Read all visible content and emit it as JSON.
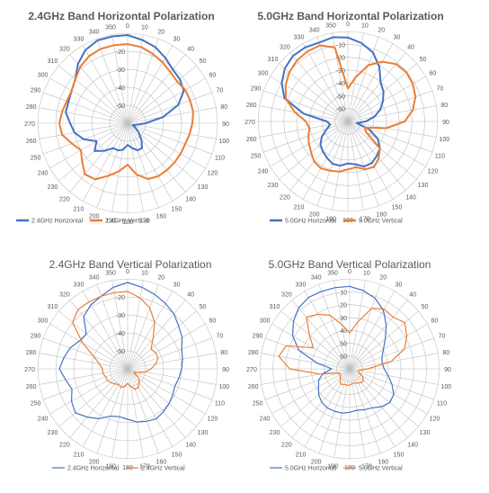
{
  "colors": {
    "horizontal": "#4472C4",
    "vertical": "#ED7D31",
    "grid": "#BFBFBF",
    "text": "#595959",
    "title": "#595959"
  },
  "chart_data": [
    {
      "type": "polar-line",
      "title": "2.4GHz Band Horizontal Polarization",
      "title_bold": true,
      "angles": [
        0,
        10,
        20,
        30,
        40,
        50,
        60,
        70,
        80,
        90,
        100,
        110,
        120,
        130,
        140,
        150,
        160,
        170,
        180,
        190,
        200,
        210,
        220,
        230,
        240,
        250,
        260,
        270,
        280,
        290,
        300,
        310,
        320,
        330,
        340,
        350
      ],
      "radial_ticks": [
        "-20",
        "-30",
        "-40",
        "-50"
      ],
      "rlim": [
        -60,
        -10
      ],
      "legend": "bottom-left",
      "series": [
        {
          "name": "2.4GHz Horizontal",
          "role": "horizontal",
          "values": [
            -11,
            -13,
            -15,
            -18,
            -21,
            -22,
            -24,
            -30,
            -40,
            -50,
            -55,
            -57,
            -55,
            -52,
            -48,
            -44,
            -44,
            -46,
            -48,
            -45,
            -44,
            -44,
            -40,
            -36,
            -40,
            -34,
            -30,
            -28,
            -25,
            -25,
            -24,
            -22,
            -17,
            -13,
            -11,
            -11
          ]
        },
        {
          "name": "2.4GHz Vertical",
          "role": "vertical",
          "values": [
            -16,
            -17,
            -19,
            -21,
            -23,
            -24,
            -23,
            -23,
            -23,
            -24,
            -25,
            -26,
            -26,
            -26,
            -26,
            -26,
            -27,
            -31,
            -37,
            -33,
            -29,
            -24,
            -23,
            -27,
            -30,
            -27,
            -23,
            -22,
            -23,
            -24,
            -24,
            -22,
            -19,
            -17,
            -16,
            -16
          ]
        }
      ]
    },
    {
      "type": "polar-line",
      "title": "5.0GHz Band Horizontal Polarization",
      "title_bold": true,
      "angles": [
        0,
        10,
        20,
        30,
        40,
        50,
        60,
        70,
        80,
        90,
        100,
        110,
        120,
        130,
        140,
        150,
        160,
        170,
        180,
        190,
        200,
        210,
        220,
        230,
        240,
        250,
        260,
        270,
        280,
        290,
        300,
        310,
        320,
        330,
        340,
        350
      ],
      "radial_ticks": [
        "-10",
        "-20",
        "-30",
        "-40",
        "-50",
        "-60"
      ],
      "rlim": [
        -70,
        -10
      ],
      "legend": "bottom-left",
      "series": [
        {
          "name": "5.0GHz Horizontal",
          "role": "horizontal",
          "values": [
            -14,
            -17,
            -21,
            -28,
            -36,
            -39,
            -43,
            -47,
            -52,
            -58,
            -64,
            -55,
            -47,
            -42,
            -40,
            -38,
            -38,
            -41,
            -42,
            -40,
            -40,
            -42,
            -44,
            -46,
            -50,
            -55,
            -58,
            -56,
            -40,
            -25,
            -19,
            -15,
            -13,
            -13,
            -14,
            -13
          ]
        },
        {
          "name": "5.0GHz Vertical",
          "role": "vertical",
          "values": [
            -48,
            -40,
            -30,
            -24,
            -20,
            -19,
            -20,
            -22,
            -26,
            -32,
            -44,
            -58,
            -56,
            -42,
            -38,
            -35,
            -36,
            -39,
            -38,
            -36,
            -35,
            -34,
            -35,
            -38,
            -40,
            -42,
            -44,
            -42,
            -34,
            -26,
            -22,
            -19,
            -17,
            -16,
            -16,
            -20
          ]
        }
      ]
    },
    {
      "type": "polar-line",
      "title": "2.4GHz Band Vertical Polarization",
      "title_bold": false,
      "angles": [
        0,
        10,
        20,
        30,
        40,
        50,
        60,
        70,
        80,
        90,
        100,
        110,
        120,
        130,
        140,
        150,
        160,
        170,
        180,
        190,
        200,
        210,
        220,
        230,
        240,
        250,
        260,
        270,
        280,
        290,
        300,
        310,
        320,
        330,
        340,
        350
      ],
      "radial_ticks": [
        "-20",
        "-30",
        "-40",
        "-50"
      ],
      "rlim": [
        -60,
        -10
      ],
      "legend": "bottom-left",
      "series": [
        {
          "name": "2.4GHz Horizontal",
          "role": "horizontal",
          "values": [
            -12,
            -14,
            -16,
            -18,
            -20,
            -23,
            -25,
            -28,
            -29,
            -30,
            -31,
            -32,
            -31,
            -30,
            -29,
            -28,
            -29,
            -30,
            -32,
            -33,
            -32,
            -28,
            -25,
            -22,
            -24,
            -27,
            -25,
            -22,
            -24,
            -26,
            -29,
            -30,
            -22,
            -19,
            -17,
            -14
          ]
        },
        {
          "name": "2.4GHz Vertical",
          "role": "vertical",
          "values": [
            -17,
            -20,
            -24,
            -30,
            -38,
            -43,
            -42,
            -42,
            -44,
            -47,
            -50,
            -54,
            -56,
            -52,
            -50,
            -48,
            -48,
            -50,
            -52,
            -50,
            -49,
            -50,
            -49,
            -48,
            -47,
            -47,
            -46,
            -46,
            -44,
            -40,
            -31,
            -20,
            -17,
            -17,
            -17,
            -17
          ]
        }
      ]
    },
    {
      "type": "polar-line",
      "title": "5.0GHz Band Vertical Polarization",
      "title_bold": false,
      "angles": [
        0,
        10,
        20,
        30,
        40,
        50,
        60,
        70,
        80,
        90,
        100,
        110,
        120,
        130,
        140,
        150,
        160,
        170,
        180,
        190,
        200,
        210,
        220,
        230,
        240,
        250,
        260,
        270,
        280,
        290,
        300,
        310,
        320,
        330,
        340,
        350
      ],
      "radial_ticks": [
        "10",
        "20",
        "30",
        "40",
        "50",
        "60"
      ],
      "rlim": [
        -70,
        -10
      ],
      "legend": "bottom-left",
      "series": [
        {
          "name": "5.0GHz Horizontal",
          "role": "horizontal",
          "values": [
            -15,
            -17,
            -20,
            -25,
            -32,
            -39,
            -44,
            -47,
            -48,
            -47,
            -44,
            -40,
            -36,
            -35,
            -37,
            -40,
            -41,
            -42,
            -41,
            -40,
            -40,
            -40,
            -41,
            -43,
            -46,
            -48,
            -52,
            -58,
            -48,
            -34,
            -26,
            -21,
            -17,
            -15,
            -15,
            -15
          ]
        },
        {
          "name": "5.0GHz Vertical",
          "role": "vertical",
          "values": [
            -46,
            -38,
            -27,
            -24,
            -25,
            -22,
            -26,
            -31,
            -42,
            -58,
            -64,
            -64,
            -60,
            -58,
            -58,
            -59,
            -60,
            -60,
            -59,
            -59,
            -59,
            -58,
            -60,
            -62,
            -63,
            -62,
            -50,
            -30,
            -22,
            -25,
            -42,
            -35,
            -25,
            -28,
            -32,
            -40
          ]
        }
      ]
    }
  ]
}
